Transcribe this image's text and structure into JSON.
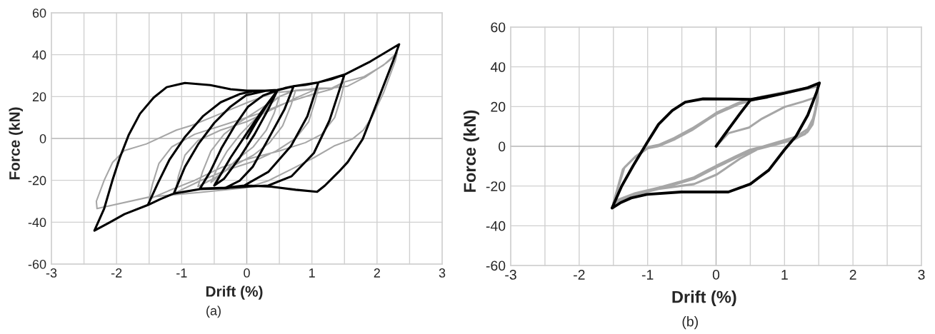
{
  "chart_data": [
    {
      "type": "line",
      "xlabel": "Drift (%)",
      "ylabel": "Force (kN)",
      "annotations": [
        "(a)"
      ],
      "xlim": [
        -3,
        3
      ],
      "ylim": [
        -60,
        60
      ],
      "xticks": [
        -3,
        {
          "value": -2.5,
          "label": null
        },
        -2,
        {
          "value": -1.5,
          "label": null
        },
        -1,
        {
          "value": -0.5,
          "label": null
        },
        0,
        {
          "value": 0.5,
          "label": null
        },
        1,
        {
          "value": 1.5,
          "label": null
        },
        2,
        {
          "value": 2.5,
          "label": null
        },
        3
      ],
      "yticks": [
        -60,
        -40,
        -20,
        0,
        20,
        40,
        60
      ],
      "grid": true,
      "series": [
        {
          "color": "#a6a6a6",
          "x": [
            0,
            0.15,
            0.35,
            0.5,
            0.42,
            0.3,
            0.1,
            -0.15,
            -0.35,
            -0.55,
            -0.45,
            -0.3,
            -0.1,
            0.15,
            0.35,
            0.5,
            0.65,
            0.75,
            0.68,
            0.55,
            0.35,
            0.1,
            -0.2,
            -0.5,
            -0.75,
            -0.68,
            -0.55,
            -0.35,
            -0.1,
            0.2,
            0.5,
            0.75,
            0.95,
            1.1,
            1.05,
            0.95,
            0.75,
            0.45,
            0.1,
            -0.3,
            -0.7,
            -1.1,
            -1.05,
            -0.95,
            -0.75,
            -0.4,
            0,
            0.4,
            0.8,
            1.1,
            1.3,
            1.5,
            1.45,
            1.35,
            1.15,
            0.9,
            0.5,
            0,
            -0.4,
            -0.8,
            -1.2,
            -1.5,
            -1.45,
            -1.35,
            -1.15,
            -0.8,
            -0.3,
            0.2,
            0.6,
            1.0,
            1.3,
            1.5,
            1.8,
            2.1,
            2.31,
            2.28,
            2.1,
            1.93,
            1.79,
            1.62,
            1.34,
            1.03,
            0.69,
            0.33,
            0,
            -0.74,
            -1.5,
            -2.3,
            -2.31,
            -2.19,
            -2.06,
            -1.88,
            -1.54,
            -1.08,
            -0.84,
            -0.5,
            0.02,
            0.41,
            0.75,
            1.27,
            1.55,
            1.83,
            2.14,
            2.3
          ],
          "values": [
            0,
            8,
            16,
            20,
            12,
            4,
            -4,
            -10,
            -16,
            -21,
            -14,
            -6,
            2,
            10,
            16,
            20,
            22,
            23,
            16,
            6,
            -2,
            -8,
            -13,
            -19,
            -23,
            -16,
            -6,
            2,
            8,
            14,
            20,
            23,
            23.5,
            24,
            18,
            8,
            0,
            -6,
            -11,
            -15,
            -20,
            -26,
            -18,
            -8,
            -1,
            4,
            8,
            14,
            20,
            24,
            24,
            27,
            20,
            10,
            2,
            -2,
            -6,
            -10,
            -14,
            -20,
            -25,
            -29,
            -22,
            -12,
            -4,
            2,
            7,
            12,
            17,
            21,
            23.5,
            27,
            29.5,
            35,
            41,
            37,
            21.8,
            10.6,
            4,
            -0.3,
            -3.6,
            -9.2,
            -14.6,
            -20.2,
            -23.5,
            -25.8,
            -28,
            -33.5,
            -30,
            -20,
            -11.4,
            -5.8,
            -2.6,
            4,
            6.3,
            10.6,
            17.3,
            21.8,
            22.8,
            24,
            25,
            29.5,
            36,
            40
          ]
        },
        {
          "color": "#000000",
          "x": [
            0,
            0.15,
            0.3,
            0.47,
            0.33,
            0.12,
            -0.11,
            -0.35,
            -0.5,
            -0.25,
            -0.01,
            0.23,
            0.47,
            0.6,
            0.72,
            0.58,
            0.33,
            0.09,
            -0.11,
            -0.32,
            -0.72,
            -0.56,
            -0.39,
            -0.18,
            0.02,
            0.25,
            0.47,
            0.72,
            0.9,
            1.1,
            0.93,
            0.68,
            0.33,
            -0.04,
            -0.4,
            -0.72,
            -1.12,
            -0.95,
            -0.74,
            -0.5,
            -0.25,
            -0.01,
            0.3,
            0.47,
            0.72,
            1.1,
            1.3,
            1.5,
            1.27,
            1.03,
            0.69,
            0.33,
            0,
            -0.4,
            -0.72,
            -1.12,
            -1.33,
            -1.52,
            -1.36,
            -1.19,
            -0.95,
            -0.67,
            -0.4,
            -0.11,
            0.09,
            0.47,
            0.72,
            1.1,
            1.5,
            1.9,
            2.34,
            2.25,
            2.1,
            1.96,
            1.78,
            1.55,
            1.41,
            1.2,
            1.08,
            0.75,
            0.37,
            0,
            -0.32,
            -0.72,
            -1.12,
            -1.33,
            -1.52,
            -1.88,
            -2.1,
            -2.34,
            -2.19,
            -2.06,
            -1.95,
            -1.81,
            -1.64,
            -1.43,
            -1.23,
            -0.95,
            -0.56,
            -0.25,
            0,
            0.3
          ],
          "values": [
            0,
            8,
            15.5,
            22.9,
            14,
            2,
            -9.2,
            -19.3,
            -22.5,
            -9.2,
            2,
            13,
            22.9,
            24.2,
            25,
            14,
            -0.3,
            -13.6,
            -20.2,
            -23.5,
            -24,
            -15.8,
            -4.7,
            6.3,
            15.2,
            20.5,
            23,
            25,
            25.6,
            26.8,
            10.6,
            -3.6,
            -16,
            -22.5,
            -23.8,
            -24.2,
            -26.3,
            -13.6,
            -2.5,
            7.4,
            15.2,
            20.6,
            22.8,
            23,
            25,
            26.8,
            28.3,
            30.5,
            8.6,
            -7,
            -18,
            -22.5,
            -23,
            -23.8,
            -24.2,
            -26.3,
            -29,
            -31.8,
            -21,
            -10.3,
            0.7,
            10.7,
            17.3,
            21.2,
            22.5,
            23.2,
            25,
            26.8,
            30.5,
            36.8,
            45,
            37.2,
            25.2,
            14,
            -0.3,
            -11.3,
            -16,
            -22.5,
            -25.5,
            -24.5,
            -23,
            -22.5,
            -23.8,
            -24.2,
            -26.3,
            -29,
            -31.8,
            -36.2,
            -40,
            -44,
            -33.5,
            -19.7,
            -9.2,
            1.9,
            11.8,
            19.5,
            24.5,
            26.5,
            25.5,
            23.5,
            22.8,
            22.8
          ]
        }
      ]
    },
    {
      "type": "line",
      "xlabel": "Drift (%)",
      "ylabel": "Force (kN)",
      "annotations": [
        "(b)"
      ],
      "xlim": [
        -3,
        3
      ],
      "ylim": [
        -60,
        60
      ],
      "xticks": [
        -3,
        {
          "value": -2.5,
          "label": null
        },
        -2,
        {
          "value": -1.5,
          "label": null
        },
        -1,
        {
          "value": -0.5,
          "label": null
        },
        0,
        {
          "value": 0.5,
          "label": null
        },
        1,
        {
          "value": 1.5,
          "label": null
        },
        2,
        {
          "value": 2.5,
          "label": null
        },
        3
      ],
      "yticks": [
        -60,
        -40,
        -20,
        0,
        20,
        40,
        60
      ],
      "grid": true,
      "series": [
        {
          "color": "#a6a6a6",
          "x": [
            0,
            0.18,
            0.48,
            0.67,
            1.0,
            1.27,
            1.49,
            1.48,
            1.44,
            1.34,
            1.17,
            0.67,
            0.35,
            0.01,
            -0.32,
            -0.84,
            -1.2,
            -1.5,
            -1.34,
            -1.18,
            -0.98,
            -0.84,
            -0.61,
            -0.35,
            -0.12,
            0.01,
            0.35,
            0.67,
            1.0,
            1.34,
            1.48,
            1.49,
            1.46,
            1.41,
            1.33,
            1.15,
            0.84,
            0.5,
            0.28,
            0.01,
            -0.12,
            -0.32,
            -0.51,
            -0.84,
            -1.18,
            -1.44,
            -1.5,
            -1.36,
            -1.2,
            -1.0,
            -0.85,
            -0.6,
            -0.35,
            -0.12,
            0.01,
            0.35,
            0.67,
            1.0,
            1.34,
            1.48,
            1.48,
            1.45,
            1.39,
            1.3,
            1.1,
            0.84,
            0.5,
            0.28,
            0.01,
            -0.32,
            -0.84,
            -1.18,
            -1.5
          ],
          "values": [
            0,
            6.6,
            9.4,
            13.9,
            19.8,
            22.5,
            25,
            22.5,
            15.6,
            8.7,
            4.9,
            -0.3,
            -6.2,
            -14.2,
            -19,
            -21.5,
            -24.5,
            -28.5,
            -10.7,
            -5.2,
            -0.3,
            0.7,
            4.2,
            9,
            14,
            17,
            22.2,
            25,
            27.3,
            29.5,
            30.8,
            26,
            19,
            11,
            7,
            3.5,
            1.2,
            -1.7,
            -5.2,
            -9.7,
            -12,
            -15.6,
            -17.7,
            -20.8,
            -23.6,
            -27,
            -28.5,
            -11.5,
            -6,
            -1,
            0,
            3.6,
            8.2,
            13.5,
            16.3,
            21.5,
            24.4,
            26.8,
            29,
            30.2,
            25.5,
            18.5,
            10.5,
            6.2,
            3,
            0.6,
            -2.4,
            -6,
            -10.5,
            -16.4,
            -21.5,
            -24.3,
            -29
          ]
        },
        {
          "color": "#000000",
          "x": [
            0,
            0.2,
            0.35,
            0.5,
            0.75,
            1.0,
            1.34,
            1.51,
            1.47,
            1.34,
            1.17,
            1.0,
            0.77,
            0.5,
            0.18,
            -0.12,
            -0.51,
            -1.01,
            -1.24,
            -1.4,
            -1.52,
            -1.38,
            -1.21,
            -1.01,
            -0.84,
            -0.64,
            -0.45,
            -0.19,
            0.2,
            0.5,
            1.0,
            1.34,
            1.51
          ],
          "values": [
            0,
            9.5,
            16.5,
            23.2,
            24.8,
            26.7,
            29.5,
            31.9,
            27.3,
            15.7,
            5.2,
            -1.7,
            -12,
            -19,
            -23,
            -23,
            -23,
            -24.2,
            -26,
            -28.5,
            -31.1,
            -20.1,
            -9.7,
            1.7,
            11.1,
            18,
            22.2,
            23.9,
            23.8,
            23.6,
            26.7,
            29.5,
            31.9
          ]
        }
      ]
    }
  ]
}
